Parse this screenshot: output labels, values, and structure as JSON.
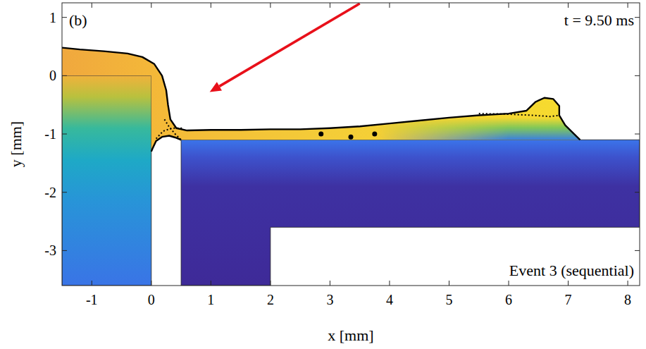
{
  "chart_data": {
    "type": "field",
    "panel_label": "(b)",
    "annotation": "t = 9.50 ms",
    "caption": "Event 3 (sequential)",
    "xlabel": "x [mm]",
    "ylabel": "y [mm]",
    "xlim": [
      -1.5,
      8.2
    ],
    "ylim": [
      -3.6,
      1.25
    ],
    "xticks": [
      -1,
      0,
      1,
      2,
      3,
      4,
      5,
      6,
      7,
      8
    ],
    "yticks": [
      -3,
      -2,
      -1,
      0,
      1
    ],
    "solids": [
      {
        "x": [
          -1.5,
          0,
          0,
          -1.5
        ],
        "y": [
          0,
          0,
          -3.6,
          -3.6
        ]
      },
      {
        "x": [
          0.5,
          8.2,
          8.2,
          2,
          2,
          0.5
        ],
        "y": [
          -1.1,
          -1.1,
          -2.6,
          -2.6,
          -3.6,
          -3.6
        ]
      }
    ],
    "free_surface": {
      "x": [
        -1.5,
        -1.2,
        -0.8,
        -0.4,
        -0.15,
        0.05,
        0.18,
        0.25,
        0.28,
        0.32,
        0.42,
        0.6,
        1,
        1.5,
        2,
        2.5,
        3,
        3.5,
        4,
        4.5,
        5,
        5.5,
        6,
        6.3,
        6.45,
        6.6,
        6.75,
        6.85,
        6.85,
        6.95,
        7.1,
        7.2
      ],
      "y": [
        0.48,
        0.45,
        0.42,
        0.38,
        0.32,
        0.2,
        0.0,
        -0.25,
        -0.5,
        -0.75,
        -0.9,
        -0.94,
        -0.93,
        -0.93,
        -0.92,
        -0.92,
        -0.9,
        -0.87,
        -0.82,
        -0.77,
        -0.72,
        -0.68,
        -0.65,
        -0.6,
        -0.45,
        -0.38,
        -0.4,
        -0.52,
        -0.68,
        -0.85,
        -1.0,
        -1.1
      ]
    },
    "meniscus": {
      "x": [
        0.5,
        0.4,
        0.3,
        0.18,
        0.08,
        0.02,
        0
      ],
      "y": [
        -1.1,
        -1.06,
        -1.03,
        -1.05,
        -1.12,
        -1.25,
        -1.3
      ]
    },
    "dotted_interfaces": [
      {
        "x": [
          0.22,
          0.3,
          0.4,
          0.5
        ],
        "y": [
          -0.75,
          -0.88,
          -1.0,
          -1.1
        ]
      },
      {
        "x": [
          0.08,
          0.2,
          0.35,
          0.55
        ],
        "y": [
          -1.08,
          -0.95,
          -0.9,
          -0.9
        ]
      },
      {
        "x": [
          5.5,
          6.0,
          6.4,
          6.7,
          6.85
        ],
        "y": [
          -0.65,
          -0.66,
          -0.68,
          -0.7,
          -0.68
        ]
      }
    ],
    "bubbles": {
      "x": [
        2.85,
        3.35,
        3.75
      ],
      "y": [
        -1.0,
        -1.05,
        -1.0
      ]
    }
  }
}
